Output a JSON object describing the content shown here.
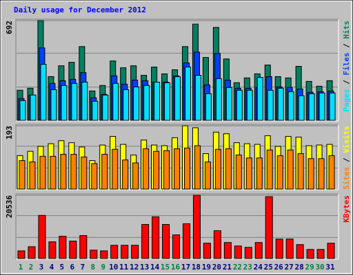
{
  "chart_data": [
    {
      "type": "bar",
      "title": "Daily usage for December 2012",
      "ylim": [
        0,
        692
      ],
      "yticks": [
        692
      ],
      "legend_separator": " / ",
      "series": [
        {
          "name": "Hits",
          "color": "#008060",
          "values": [
            212,
            226,
            692,
            306,
            381,
            405,
            513,
            207,
            245,
            414,
            367,
            381,
            315,
            372,
            325,
            353,
            513,
            668,
            438,
            645,
            428,
            264,
            297,
            325,
            386,
            306,
            297,
            377,
            273,
            240,
            278
          ]
        },
        {
          "name": "Files",
          "color": "#0040FF",
          "values": [
            155,
            179,
            504,
            259,
            278,
            287,
            334,
            160,
            183,
            311,
            254,
            282,
            278,
            268,
            268,
            311,
            400,
            475,
            249,
            466,
            282,
            226,
            226,
            231,
            306,
            235,
            231,
            221,
            198,
            202,
            207
          ]
        },
        {
          "name": "Pages",
          "color": "#00E0FF",
          "values": [
            141,
            179,
            391,
            216,
            245,
            259,
            268,
            136,
            179,
            259,
            216,
            235,
            245,
            268,
            264,
            306,
            372,
            315,
            188,
            292,
            231,
            212,
            212,
            301,
            212,
            226,
            202,
            174,
            188,
            193,
            193
          ]
        }
      ]
    },
    {
      "type": "bar",
      "ylim": [
        0,
        193
      ],
      "yticks": [
        193
      ],
      "legend_separator": " / ",
      "series": [
        {
          "name": "Visits",
          "color": "#FFFF00",
          "values": [
            103,
            116,
            131,
            139,
            148,
            142,
            129,
            88,
            135,
            161,
            137,
            105,
            150,
            135,
            133,
            157,
            193,
            187,
            109,
            174,
            169,
            142,
            139,
            137,
            163,
            131,
            161,
            159,
            133,
            135,
            137
          ]
        },
        {
          "name": "Sites",
          "color": "#FF8000",
          "values": [
            88,
            84,
            101,
            101,
            107,
            107,
            99,
            79,
            107,
            122,
            90,
            81,
            124,
            116,
            118,
            124,
            126,
            133,
            84,
            122,
            124,
            105,
            96,
            96,
            120,
            103,
            120,
            109,
            94,
            94,
            103
          ]
        }
      ]
    },
    {
      "type": "bar",
      "ylim": [
        0,
        20536
      ],
      "yticks": [
        20536
      ],
      "legend_separator": " / ",
      "series": [
        {
          "name": "KBytes",
          "color": "#FF0000",
          "values": [
            2678,
            4017,
            14066,
            5582,
            7368,
            5805,
            7591,
            2902,
            2678,
            4465,
            4465,
            4465,
            11163,
            13619,
            11163,
            7814,
            11386,
            20536,
            5135,
            9154,
            5358,
            4242,
            3796,
            5358,
            20090,
            6475,
            6475,
            4688,
            3126,
            3126,
            5135
          ]
        }
      ],
      "categories": [
        "1",
        "2",
        "3",
        "4",
        "5",
        "6",
        "7",
        "8",
        "9",
        "10",
        "11",
        "12",
        "13",
        "14",
        "15",
        "16",
        "17",
        "18",
        "19",
        "20",
        "21",
        "22",
        "23",
        "24",
        "25",
        "26",
        "27",
        "28",
        "29",
        "30",
        "31"
      ],
      "category_colors": [
        "#008040",
        "#008040",
        "#000080",
        "#000080",
        "#000080",
        "#000080",
        "#000080",
        "#008040",
        "#008040",
        "#000080",
        "#000080",
        "#000080",
        "#000080",
        "#000080",
        "#008040",
        "#008040",
        "#000080",
        "#000080",
        "#000080",
        "#000080",
        "#000080",
        "#008040",
        "#008040",
        "#000080",
        "#000080",
        "#000080",
        "#000080",
        "#000080",
        "#008040",
        "#008040",
        "#000080"
      ]
    }
  ]
}
